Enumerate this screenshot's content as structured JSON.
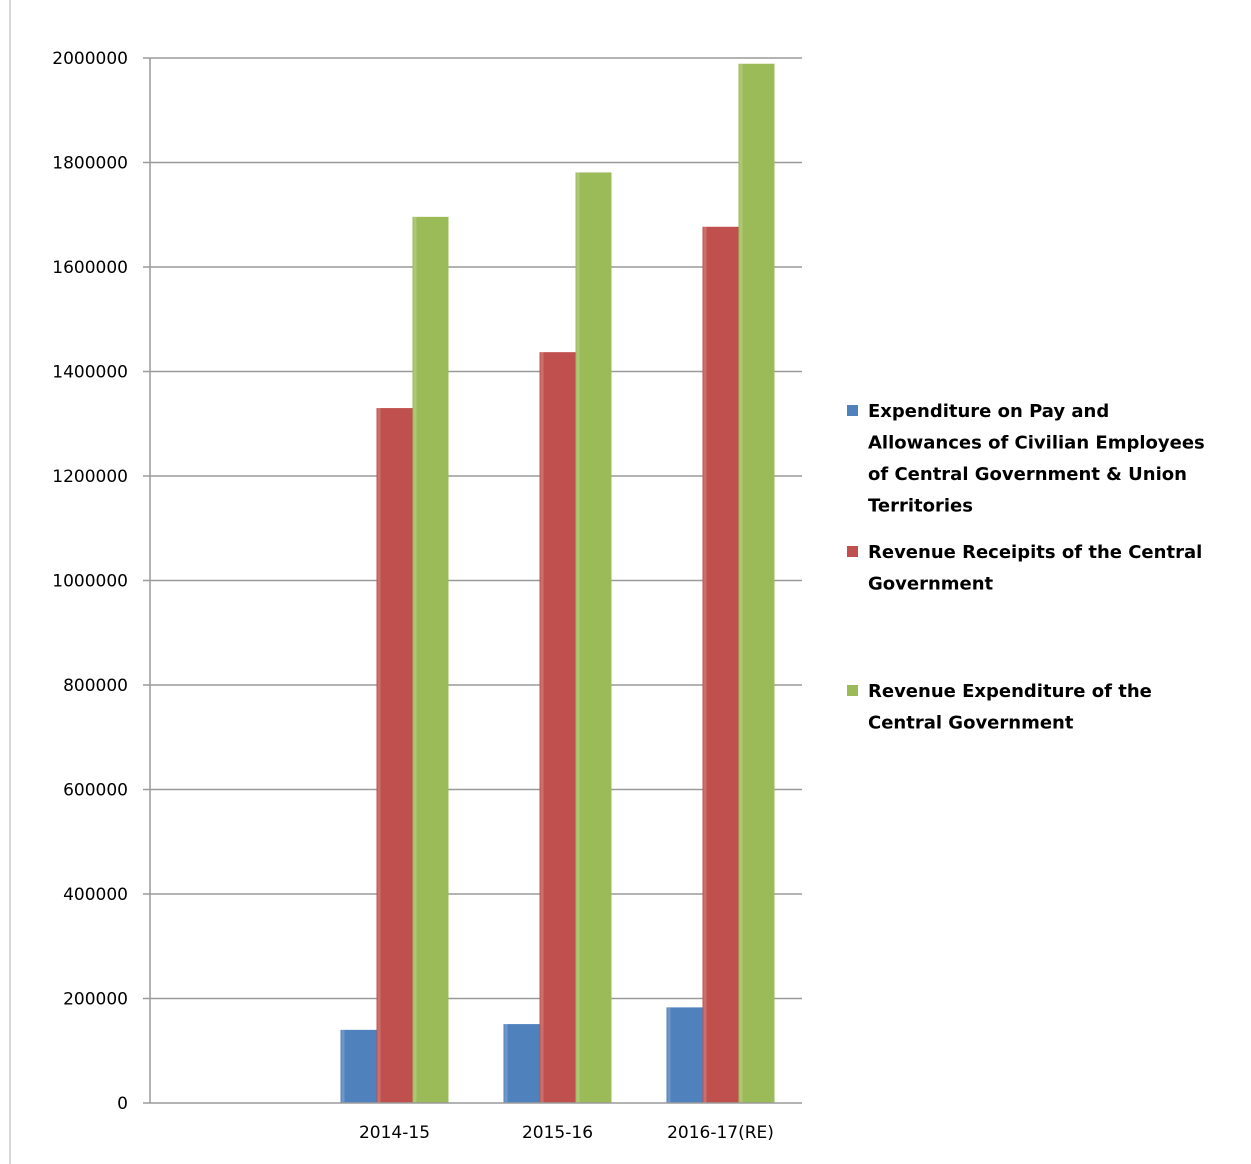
{
  "chart_data": {
    "type": "bar",
    "categories": [
      "",
      "2014-15",
      "2015-16",
      "2016-17(RE)"
    ],
    "series": [
      {
        "name": "Expenditure on Pay and Allowances of Civilian Employees of Central Government & Union Territories",
        "legend_lines": [
          "Expenditure on Pay and",
          "Allowances of Civilian Employees",
          "of Central Government & Union",
          "Territories"
        ],
        "values": [
          null,
          140000,
          151000,
          183000
        ],
        "color": "#4f81bd"
      },
      {
        "name": "Revenue Receipits of the Central Government",
        "legend_lines": [
          "Revenue Receipits of the Central",
          "Government"
        ],
        "values": [
          null,
          1330000,
          1437000,
          1677000
        ],
        "color": "#c0504d"
      },
      {
        "name": "Revenue Expenditure of the Central Government",
        "legend_lines": [
          "Revenue Expenditure of the",
          "Central Government"
        ],
        "values": [
          null,
          1696000,
          1781000,
          1989000
        ],
        "color": "#9bbb59"
      }
    ],
    "ylim": [
      0,
      2000000
    ],
    "yticks": [
      "0",
      "200000",
      "400000",
      "600000",
      "800000",
      "1000000",
      "1200000",
      "1400000",
      "1600000",
      "1800000",
      "2000000"
    ],
    "ytick_values": [
      0,
      200000,
      400000,
      600000,
      800000,
      1000000,
      1200000,
      1400000,
      1600000,
      1800000,
      2000000
    ],
    "grid": true,
    "legend_position": "right",
    "title": "",
    "xlabel": "",
    "ylabel": ""
  }
}
